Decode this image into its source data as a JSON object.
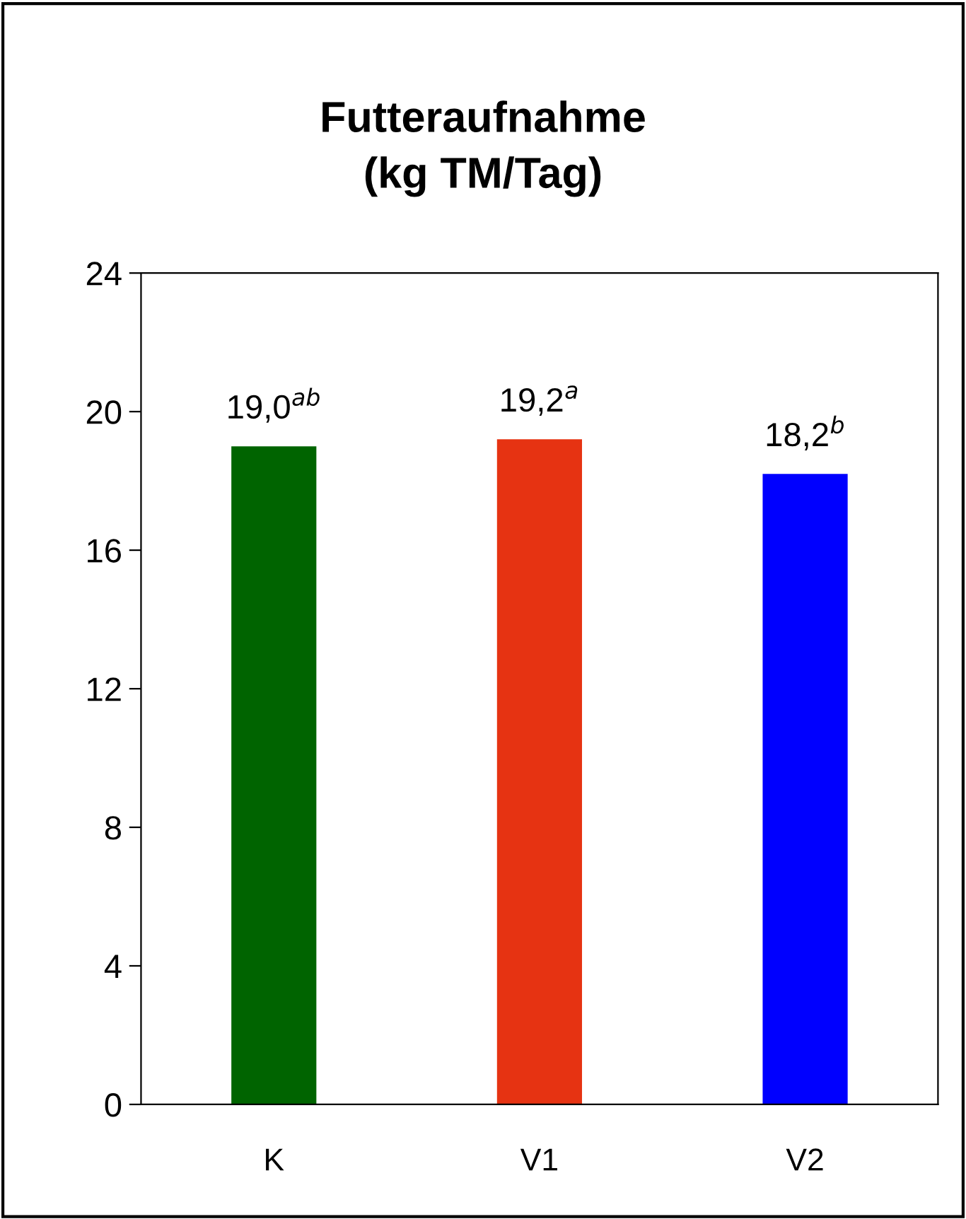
{
  "chart_data": {
    "type": "bar",
    "title": "Futteraufnahme\n(kg TM/Tag)",
    "categories": [
      "K",
      "V1",
      "V2"
    ],
    "values": [
      19.0,
      19.2,
      18.2
    ],
    "colors": [
      "#006400",
      "#e63312",
      "#0000ff"
    ],
    "value_labels": [
      "19,0$^{ab}$",
      "19,2$^{a}$",
      "18,2$^{b}$"
    ],
    "ylim": [
      0,
      24
    ],
    "yticks": [
      0,
      4,
      8,
      12,
      16,
      20,
      24
    ],
    "grid": false,
    "legend": false
  }
}
